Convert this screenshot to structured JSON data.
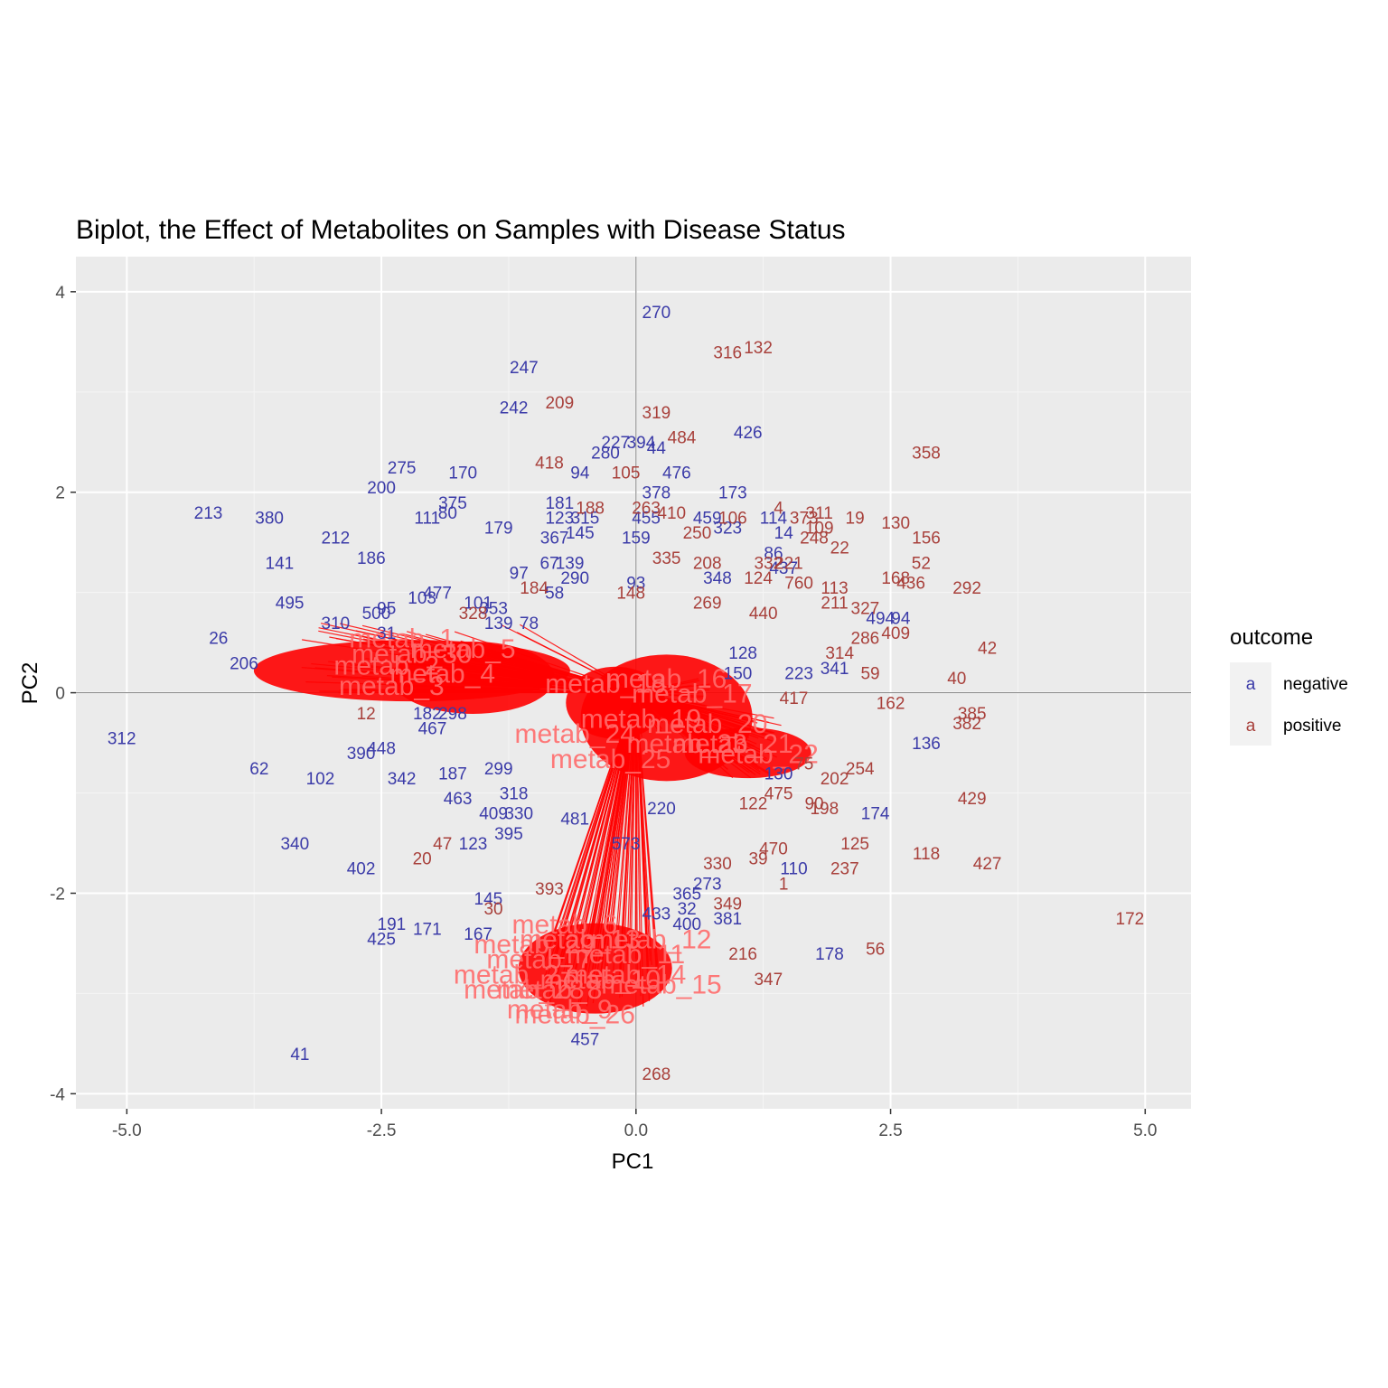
{
  "chart_data": {
    "type": "scatter",
    "title": "Biplot, the Effect of Metabolites on Samples with Disease Status",
    "xlabel": "PC1",
    "ylabel": "PC2",
    "xlim": [
      -5.5,
      5.45
    ],
    "ylim": [
      -4.15,
      4.35
    ],
    "x_ticks": [
      -5.0,
      -2.5,
      0.0,
      2.5,
      5.0
    ],
    "x_tick_labels": [
      "-5.0",
      "-2.5",
      "0.0",
      "2.5",
      "5.0"
    ],
    "y_ticks": [
      -4,
      -2,
      0,
      2,
      4
    ],
    "y_tick_labels": [
      "-4",
      "-2",
      "0",
      "2",
      "4"
    ],
    "grid": true,
    "reference_lines": {
      "x": 0,
      "y": 0
    },
    "legend": {
      "title": "outcome",
      "position": "right",
      "key_glyph": "a",
      "entries": [
        {
          "label": "negative",
          "color": "#3b3ba8"
        },
        {
          "label": "positive",
          "color": "#a8403b"
        }
      ]
    },
    "colors": {
      "negative": "#3b3ba8",
      "positive": "#a8403b",
      "loading": "#ff0000",
      "loading_label": "#ff6b6b",
      "panel": "#ebebeb",
      "grid_major": "#ffffff",
      "grid_minor": "#f5f5f5",
      "reference": "#7f7f7f"
    },
    "series": [
      {
        "name": "negative",
        "points": [
          {
            "label": "270",
            "x": 0.2,
            "y": 3.8
          },
          {
            "label": "247",
            "x": -1.1,
            "y": 3.25
          },
          {
            "label": "242",
            "x": -1.2,
            "y": 2.85
          },
          {
            "label": "426",
            "x": 1.1,
            "y": 2.6
          },
          {
            "label": "227",
            "x": -0.2,
            "y": 2.5
          },
          {
            "label": "280",
            "x": -0.3,
            "y": 2.4
          },
          {
            "label": "394",
            "x": 0.05,
            "y": 2.5
          },
          {
            "label": "44",
            "x": 0.2,
            "y": 2.45
          },
          {
            "label": "476",
            "x": 0.4,
            "y": 2.2
          },
          {
            "label": "94",
            "x": -0.55,
            "y": 2.2
          },
          {
            "label": "378",
            "x": 0.2,
            "y": 2.0
          },
          {
            "label": "173",
            "x": 0.95,
            "y": 2.0
          },
          {
            "label": "114",
            "x": 1.35,
            "y": 1.75
          },
          {
            "label": "275",
            "x": -2.3,
            "y": 2.25
          },
          {
            "label": "200",
            "x": -2.5,
            "y": 2.05
          },
          {
            "label": "170",
            "x": -1.7,
            "y": 2.2
          },
          {
            "label": "375",
            "x": -1.8,
            "y": 1.9
          },
          {
            "label": "111",
            "x": -2.05,
            "y": 1.75
          },
          {
            "label": "80",
            "x": -1.85,
            "y": 1.8
          },
          {
            "label": "179",
            "x": -1.35,
            "y": 1.65
          },
          {
            "label": "181",
            "x": -0.75,
            "y": 1.9
          },
          {
            "label": "123",
            "x": -0.75,
            "y": 1.75
          },
          {
            "label": "315",
            "x": -0.5,
            "y": 1.75
          },
          {
            "label": "455",
            "x": 0.1,
            "y": 1.75
          },
          {
            "label": "459",
            "x": 0.7,
            "y": 1.75
          },
          {
            "label": "323",
            "x": 0.9,
            "y": 1.65
          },
          {
            "label": "213",
            "x": -4.2,
            "y": 1.8
          },
          {
            "label": "380",
            "x": -3.6,
            "y": 1.75
          },
          {
            "label": "212",
            "x": -2.95,
            "y": 1.55
          },
          {
            "label": "141",
            "x": -3.5,
            "y": 1.3
          },
          {
            "label": "186",
            "x": -2.6,
            "y": 1.35
          },
          {
            "label": "495",
            "x": -3.4,
            "y": 0.9
          },
          {
            "label": "26",
            "x": -4.1,
            "y": 0.55
          },
          {
            "label": "206",
            "x": -3.85,
            "y": 0.3
          },
          {
            "label": "310",
            "x": -2.95,
            "y": 0.7
          },
          {
            "label": "95",
            "x": -2.45,
            "y": 0.85
          },
          {
            "label": "500",
            "x": -2.55,
            "y": 0.8
          },
          {
            "label": "103",
            "x": -2.1,
            "y": 0.95
          },
          {
            "label": "477",
            "x": -1.95,
            "y": 1.0
          },
          {
            "label": "101",
            "x": -1.55,
            "y": 0.9
          },
          {
            "label": "353",
            "x": -1.4,
            "y": 0.85
          },
          {
            "label": "78",
            "x": -1.05,
            "y": 0.7
          },
          {
            "label": "139",
            "x": -1.35,
            "y": 0.7
          },
          {
            "label": "31",
            "x": -2.45,
            "y": 0.6
          },
          {
            "label": "367",
            "x": -0.8,
            "y": 1.55
          },
          {
            "label": "145",
            "x": -0.55,
            "y": 1.6
          },
          {
            "label": "159",
            "x": 0.0,
            "y": 1.55
          },
          {
            "label": "97",
            "x": -1.15,
            "y": 1.2
          },
          {
            "label": "67",
            "x": -0.85,
            "y": 1.3
          },
          {
            "label": "139b",
            "x": -0.65,
            "y": 1.3
          },
          {
            "label": "290",
            "x": -0.6,
            "y": 1.15
          },
          {
            "label": "58",
            "x": -0.8,
            "y": 1.0
          },
          {
            "label": "93",
            "x": 0.0,
            "y": 1.1
          },
          {
            "label": "348",
            "x": 0.8,
            "y": 1.15
          },
          {
            "label": "14",
            "x": 1.45,
            "y": 1.6
          },
          {
            "label": "86",
            "x": 1.35,
            "y": 1.4
          },
          {
            "label": "437",
            "x": 1.45,
            "y": 1.25
          },
          {
            "label": "494",
            "x": 2.4,
            "y": 0.75
          },
          {
            "label": "94b",
            "x": 2.6,
            "y": 0.75
          },
          {
            "label": "150",
            "x": 1.0,
            "y": 0.2
          },
          {
            "label": "128",
            "x": 1.05,
            "y": 0.4
          },
          {
            "label": "223",
            "x": 1.6,
            "y": 0.2
          },
          {
            "label": "341",
            "x": 1.95,
            "y": 0.25
          },
          {
            "label": "136",
            "x": 2.85,
            "y": -0.5
          },
          {
            "label": "174",
            "x": 2.35,
            "y": -1.2
          },
          {
            "label": "110",
            "x": 1.55,
            "y": -1.75
          },
          {
            "label": "178",
            "x": 1.9,
            "y": -2.6
          },
          {
            "label": "312",
            "x": -5.05,
            "y": -0.45
          },
          {
            "label": "62",
            "x": -3.7,
            "y": -0.75
          },
          {
            "label": "390",
            "x": -2.7,
            "y": -0.6
          },
          {
            "label": "448",
            "x": -2.5,
            "y": -0.55
          },
          {
            "label": "102",
            "x": -3.1,
            "y": -0.85
          },
          {
            "label": "342",
            "x": -2.3,
            "y": -0.85
          },
          {
            "label": "187",
            "x": -1.8,
            "y": -0.8
          },
          {
            "label": "463",
            "x": -1.75,
            "y": -1.05
          },
          {
            "label": "467",
            "x": -2.0,
            "y": -0.35
          },
          {
            "label": "182",
            "x": -2.05,
            "y": -0.2
          },
          {
            "label": "298",
            "x": -1.8,
            "y": -0.2
          },
          {
            "label": "299",
            "x": -1.35,
            "y": -0.75
          },
          {
            "label": "318",
            "x": -1.2,
            "y": -1.0
          },
          {
            "label": "330",
            "x": -1.15,
            "y": -1.2
          },
          {
            "label": "409",
            "x": -1.4,
            "y": -1.2
          },
          {
            "label": "123b",
            "x": -1.6,
            "y": -1.5
          },
          {
            "label": "395",
            "x": -1.25,
            "y": -1.4
          },
          {
            "label": "340",
            "x": -3.35,
            "y": -1.5
          },
          {
            "label": "402",
            "x": -2.7,
            "y": -1.75
          },
          {
            "label": "145b",
            "x": -1.45,
            "y": -2.05
          },
          {
            "label": "191",
            "x": -2.4,
            "y": -2.3
          },
          {
            "label": "425",
            "x": -2.5,
            "y": -2.45
          },
          {
            "label": "171",
            "x": -2.05,
            "y": -2.35
          },
          {
            "label": "167",
            "x": -1.55,
            "y": -2.4
          },
          {
            "label": "41",
            "x": -3.3,
            "y": -3.6
          },
          {
            "label": "457",
            "x": -0.5,
            "y": -3.45
          },
          {
            "label": "481",
            "x": -0.6,
            "y": -1.25
          },
          {
            "label": "573",
            "x": -0.1,
            "y": -1.5
          },
          {
            "label": "365",
            "x": 0.5,
            "y": -2.0
          },
          {
            "label": "273",
            "x": 0.7,
            "y": -1.9
          },
          {
            "label": "32",
            "x": 0.5,
            "y": -2.15
          },
          {
            "label": "381",
            "x": 0.9,
            "y": -2.25
          },
          {
            "label": "433",
            "x": 0.2,
            "y": -2.2
          },
          {
            "label": "400",
            "x": 0.5,
            "y": -2.3
          },
          {
            "label": "130",
            "x": 1.4,
            "y": -0.8
          },
          {
            "label": "220",
            "x": 0.25,
            "y": -1.15
          }
        ]
      },
      {
        "name": "positive",
        "points": [
          {
            "label": "316",
            "x": 0.9,
            "y": 3.4
          },
          {
            "label": "132",
            "x": 1.2,
            "y": 3.45
          },
          {
            "label": "209",
            "x": -0.75,
            "y": 2.9
          },
          {
            "label": "319",
            "x": 0.2,
            "y": 2.8
          },
          {
            "label": "484",
            "x": 0.45,
            "y": 2.55
          },
          {
            "label": "418",
            "x": -0.85,
            "y": 2.3
          },
          {
            "label": "105",
            "x": -0.1,
            "y": 2.2
          },
          {
            "label": "358",
            "x": 2.85,
            "y": 2.4
          },
          {
            "label": "188",
            "x": -0.45,
            "y": 1.85
          },
          {
            "label": "263",
            "x": 0.1,
            "y": 1.85
          },
          {
            "label": "410",
            "x": 0.35,
            "y": 1.8
          },
          {
            "label": "106",
            "x": 0.95,
            "y": 1.75
          },
          {
            "label": "250",
            "x": 0.6,
            "y": 1.6
          },
          {
            "label": "4",
            "x": 1.4,
            "y": 1.85
          },
          {
            "label": "311",
            "x": 1.8,
            "y": 1.8
          },
          {
            "label": "373",
            "x": 1.65,
            "y": 1.75
          },
          {
            "label": "19",
            "x": 2.15,
            "y": 1.75
          },
          {
            "label": "109",
            "x": 1.8,
            "y": 1.65
          },
          {
            "label": "130b",
            "x": 2.55,
            "y": 1.7
          },
          {
            "label": "156",
            "x": 2.85,
            "y": 1.55
          },
          {
            "label": "248",
            "x": 1.75,
            "y": 1.55
          },
          {
            "label": "22",
            "x": 2.0,
            "y": 1.45
          },
          {
            "label": "208",
            "x": 0.7,
            "y": 1.3
          },
          {
            "label": "335",
            "x": 0.3,
            "y": 1.35
          },
          {
            "label": "332",
            "x": 1.3,
            "y": 1.3
          },
          {
            "label": "221",
            "x": 1.5,
            "y": 1.3
          },
          {
            "label": "124",
            "x": 1.2,
            "y": 1.15
          },
          {
            "label": "760",
            "x": 1.6,
            "y": 1.1
          },
          {
            "label": "52",
            "x": 2.8,
            "y": 1.3
          },
          {
            "label": "168",
            "x": 2.55,
            "y": 1.15
          },
          {
            "label": "436",
            "x": 2.7,
            "y": 1.1
          },
          {
            "label": "292",
            "x": 3.25,
            "y": 1.05
          },
          {
            "label": "113",
            "x": 1.95,
            "y": 1.05
          },
          {
            "label": "211",
            "x": 1.95,
            "y": 0.9
          },
          {
            "label": "327",
            "x": 2.25,
            "y": 0.85
          },
          {
            "label": "409b",
            "x": 2.55,
            "y": 0.6
          },
          {
            "label": "286",
            "x": 2.25,
            "y": 0.55
          },
          {
            "label": "42",
            "x": 3.45,
            "y": 0.45
          },
          {
            "label": "40",
            "x": 3.15,
            "y": 0.15
          },
          {
            "label": "59",
            "x": 2.3,
            "y": 0.2
          },
          {
            "label": "162",
            "x": 2.5,
            "y": -0.1
          },
          {
            "label": "385",
            "x": 3.3,
            "y": -0.2
          },
          {
            "label": "382",
            "x": 3.25,
            "y": -0.3
          },
          {
            "label": "314",
            "x": 2.0,
            "y": 0.4
          },
          {
            "label": "254",
            "x": 2.2,
            "y": -0.75
          },
          {
            "label": "202",
            "x": 1.95,
            "y": -0.85
          },
          {
            "label": "429",
            "x": 3.3,
            "y": -1.05
          },
          {
            "label": "118",
            "x": 2.85,
            "y": -1.6
          },
          {
            "label": "427",
            "x": 3.45,
            "y": -1.7
          },
          {
            "label": "125",
            "x": 2.15,
            "y": -1.5
          },
          {
            "label": "237",
            "x": 2.05,
            "y": -1.75
          },
          {
            "label": "172",
            "x": 4.85,
            "y": -2.25
          },
          {
            "label": "56",
            "x": 2.35,
            "y": -2.55
          },
          {
            "label": "216",
            "x": 1.05,
            "y": -2.6
          },
          {
            "label": "347",
            "x": 1.3,
            "y": -2.85
          },
          {
            "label": "349",
            "x": 0.9,
            "y": -2.1
          },
          {
            "label": "268",
            "x": 0.2,
            "y": -3.8
          },
          {
            "label": "330b",
            "x": 0.8,
            "y": -1.7
          },
          {
            "label": "39",
            "x": 1.2,
            "y": -1.65
          },
          {
            "label": "470",
            "x": 1.35,
            "y": -1.55
          },
          {
            "label": "1",
            "x": 1.45,
            "y": -1.9
          },
          {
            "label": "90",
            "x": 1.75,
            "y": -1.1
          },
          {
            "label": "198",
            "x": 1.85,
            "y": -1.15
          },
          {
            "label": "475",
            "x": 1.4,
            "y": -1.0
          },
          {
            "label": "122",
            "x": 1.15,
            "y": -1.1
          },
          {
            "label": "47",
            "x": -1.9,
            "y": -1.5
          },
          {
            "label": "20",
            "x": -2.1,
            "y": -1.65
          },
          {
            "label": "393",
            "x": -0.85,
            "y": -1.95
          },
          {
            "label": "30",
            "x": -1.4,
            "y": -2.15
          },
          {
            "label": "12",
            "x": -2.65,
            "y": -0.2
          },
          {
            "label": "328",
            "x": -1.6,
            "y": 0.8
          },
          {
            "label": "184",
            "x": -1.0,
            "y": 1.05
          },
          {
            "label": "148",
            "x": -0.05,
            "y": 1.0
          },
          {
            "label": "269",
            "x": 0.7,
            "y": 0.9
          },
          {
            "label": "440",
            "x": 1.25,
            "y": 0.8
          },
          {
            "label": "417",
            "x": 1.55,
            "y": -0.05
          },
          {
            "label": "75",
            "x": 1.65,
            "y": -0.7
          }
        ]
      }
    ],
    "loading_labels": [
      "metab_1",
      "metab_2",
      "metab_3",
      "metab_4",
      "metab_5",
      "metab_6",
      "metab_7",
      "metab_8",
      "metab_9",
      "metab_10",
      "metab_11",
      "metab_12",
      "metab_13",
      "metab_14",
      "metab_15",
      "metab_16",
      "metab_17",
      "metab_18",
      "metab_19",
      "metab_20",
      "metab_21",
      "metab_22",
      "metab_23",
      "metab_24",
      "metab_25",
      "metab_26",
      "metab_27",
      "metab_28",
      "metab_29",
      "metab_30"
    ]
  }
}
